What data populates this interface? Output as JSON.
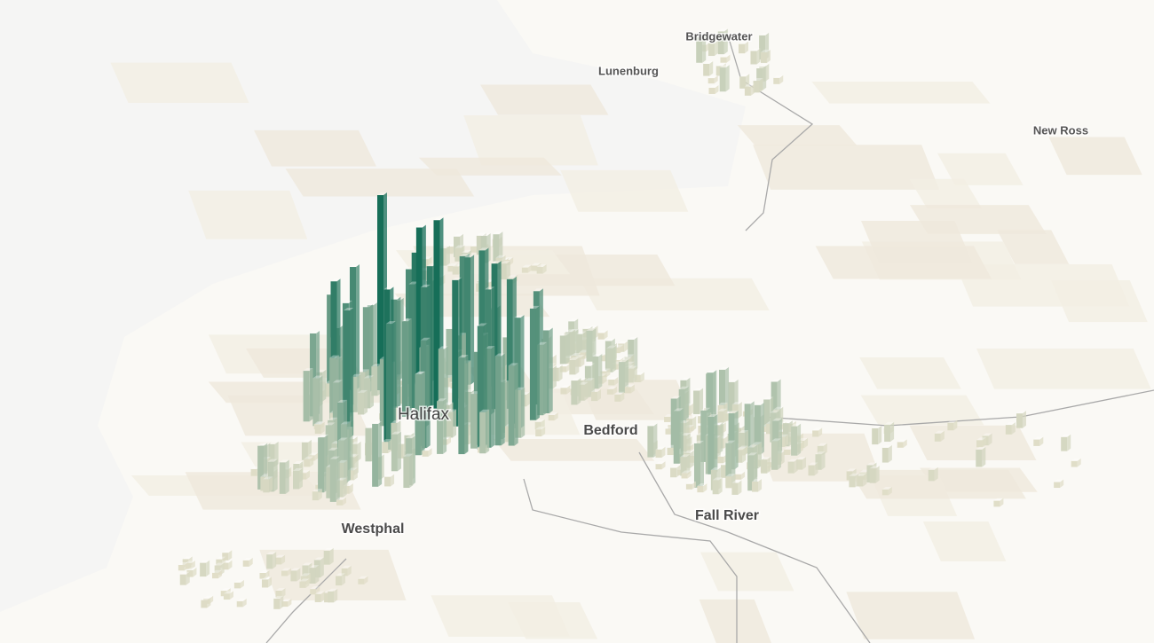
{
  "map": {
    "places": [
      {
        "label": "Bridgewater"
      },
      {
        "label": "Lunenburg"
      },
      {
        "label": "New Ross"
      },
      {
        "label": "Halifax"
      },
      {
        "label": "Bedford"
      },
      {
        "label": "Westphal"
      },
      {
        "label": "Fall River"
      }
    ]
  }
}
